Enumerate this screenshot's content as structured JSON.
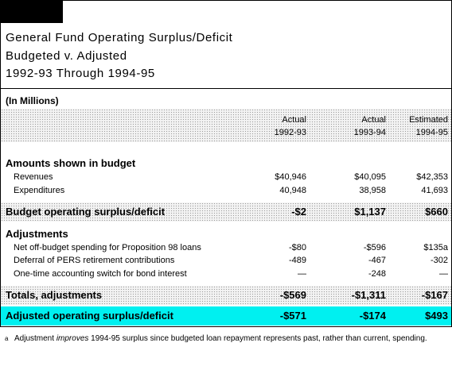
{
  "title": {
    "line1": "General Fund Operating Surplus/Deficit",
    "line2": "Budgeted v. Adjusted",
    "line3": "1992-93 Through 1994-95"
  },
  "units": "(In Millions)",
  "columns": [
    {
      "line1": "Actual",
      "line2": "1992-93"
    },
    {
      "line1": "Actual",
      "line2": "1993-94"
    },
    {
      "line1": "Estimated",
      "line2": "1994-95"
    }
  ],
  "sections": {
    "budget": "Amounts shown in budget",
    "adjustments": "Adjustments"
  },
  "rows": {
    "revenues": {
      "label": "Revenues",
      "values": [
        "$40,946",
        "$40,095",
        "$42,353"
      ]
    },
    "expenditures": {
      "label": "Expenditures",
      "values": [
        "40,948",
        "38,958",
        "41,693"
      ]
    },
    "budget_surplus": {
      "label": "Budget operating surplus/deficit",
      "values": [
        "-$2",
        "$1,137",
        "$660"
      ]
    },
    "offbudget": {
      "label": "Net off-budget spending for Proposition 98 loans",
      "values": [
        "-$80",
        "-$596",
        "$135a"
      ]
    },
    "pers": {
      "label": "Deferral of PERS retirement contributions",
      "values": [
        "-489",
        "-467",
        "-302"
      ]
    },
    "onetime": {
      "label": "One-time accounting switch for bond interest",
      "values": [
        "—",
        "-248",
        "—"
      ]
    },
    "totals": {
      "label": "Totals, adjustments",
      "values": [
        "-$569",
        "-$1,311",
        "-$167"
      ]
    },
    "adjusted": {
      "label": "Adjusted operating surplus/deficit",
      "values": [
        "-$571",
        "-$174",
        "$493"
      ]
    }
  },
  "footnote": {
    "mark": "a",
    "before": "Adjustment ",
    "emph": "improves",
    "after": " 1994-95 surplus since budgeted loan repayment represents past, rather than current, spending."
  },
  "colors": {
    "highlight": "#00f0f0",
    "shade": "#f3f3f3"
  }
}
